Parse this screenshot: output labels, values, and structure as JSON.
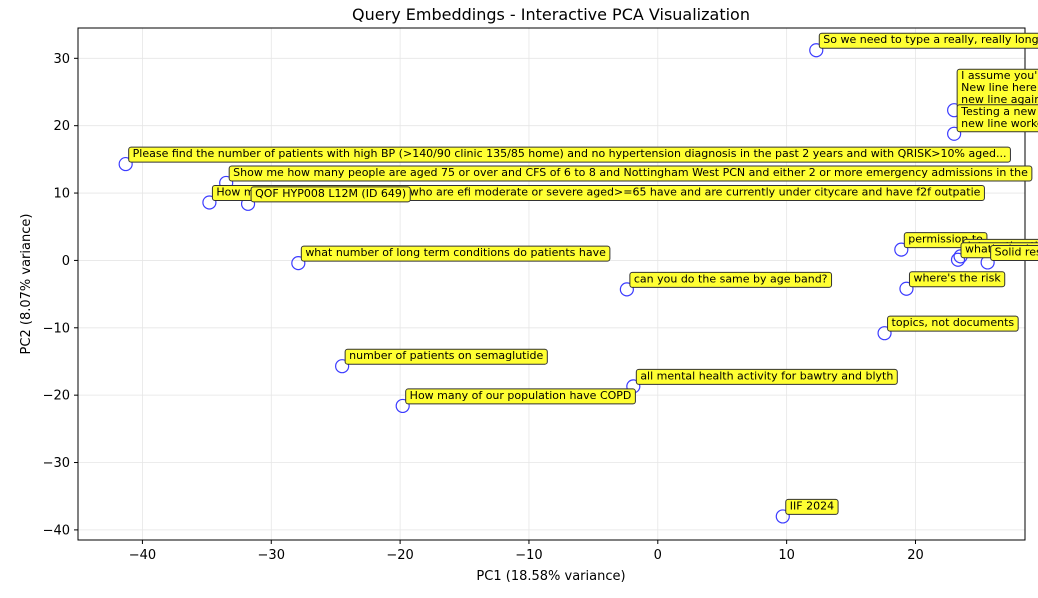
{
  "chart_data": {
    "type": "scatter",
    "title": "Query Embeddings - Interactive PCA Visualization",
    "xlabel": "PC1 (18.58% variance)",
    "ylabel": "PC2 (8.07% variance)",
    "xlim": [
      -45,
      28.5
    ],
    "ylim": [
      -41.5,
      34.5
    ],
    "xticks": [
      -40,
      -30,
      -20,
      -10,
      0,
      10,
      20
    ],
    "yticks": [
      -40,
      -30,
      -20,
      -10,
      0,
      10,
      20,
      30
    ],
    "xtick_labels": [
      "−40",
      "−30",
      "−20",
      "−10",
      "0",
      "10",
      "20"
    ],
    "ytick_labels": [
      "−40",
      "−30",
      "−20",
      "−10",
      "0",
      "10",
      "20",
      "30"
    ],
    "grid": true,
    "marker_color": "#3b3bff",
    "annotation_color": "#ffff33",
    "points": [
      {
        "x": 12.3,
        "y": 31.2,
        "label": [
          "So we need to type a really, really long"
        ]
      },
      {
        "x": 23.0,
        "y": 22.3,
        "label": [
          "I assume you'r",
          "New line here",
          "new line again"
        ]
      },
      {
        "x": 23.0,
        "y": 18.8,
        "label": [
          "Testing a new",
          "new line worke"
        ]
      },
      {
        "x": -41.3,
        "y": 14.3,
        "label": [
          "Please find the number of patients with high BP (>140/90 clinic 135/85 home) and no hypertension diagnosis in the past 2 years and with QRISK>10% aged..."
        ]
      },
      {
        "x": -33.5,
        "y": 11.5,
        "label": [
          "Show me how many people are aged 75 or over and CFS of 6 to 8 and Nottingham West PCN and either 2 or more emergency admissions in the"
        ]
      },
      {
        "x": -34.8,
        "y": 8.6,
        "label": [
          "How many patients in the practice who are efi moderate or severe aged>=65 have and are currently under citycare and have f2f outpatie"
        ]
      },
      {
        "x": -31.8,
        "y": 8.4,
        "label": [
          "QOF HYP008 L12M (ID 649)"
        ]
      },
      {
        "x": -27.9,
        "y": -0.4,
        "label": [
          "what number of long term conditions do patients have"
        ]
      },
      {
        "x": 18.9,
        "y": 1.6,
        "label": [
          "permission to"
        ]
      },
      {
        "x": 23.5,
        "y": 0.6,
        "label": [
          "Interesting th"
        ]
      },
      {
        "x": 23.3,
        "y": 0.1,
        "label": [
          "what's the be"
        ]
      },
      {
        "x": 25.6,
        "y": -0.3,
        "label": [
          "Solid response"
        ]
      },
      {
        "x": 19.3,
        "y": -4.2,
        "label": [
          "where's the risk"
        ]
      },
      {
        "x": -2.4,
        "y": -4.3,
        "label": [
          "can you do the same by age band?"
        ]
      },
      {
        "x": 17.6,
        "y": -10.8,
        "label": [
          "topics, not documents"
        ]
      },
      {
        "x": -24.5,
        "y": -15.7,
        "label": [
          "number of patients on semaglutide"
        ]
      },
      {
        "x": -1.9,
        "y": -18.7,
        "label": [
          "all mental health activity for bawtry and blyth"
        ]
      },
      {
        "x": -19.8,
        "y": -21.6,
        "label": [
          "How many of our population have COPD"
        ]
      },
      {
        "x": 9.7,
        "y": -38.0,
        "label": [
          "IIF 2024"
        ]
      }
    ]
  }
}
